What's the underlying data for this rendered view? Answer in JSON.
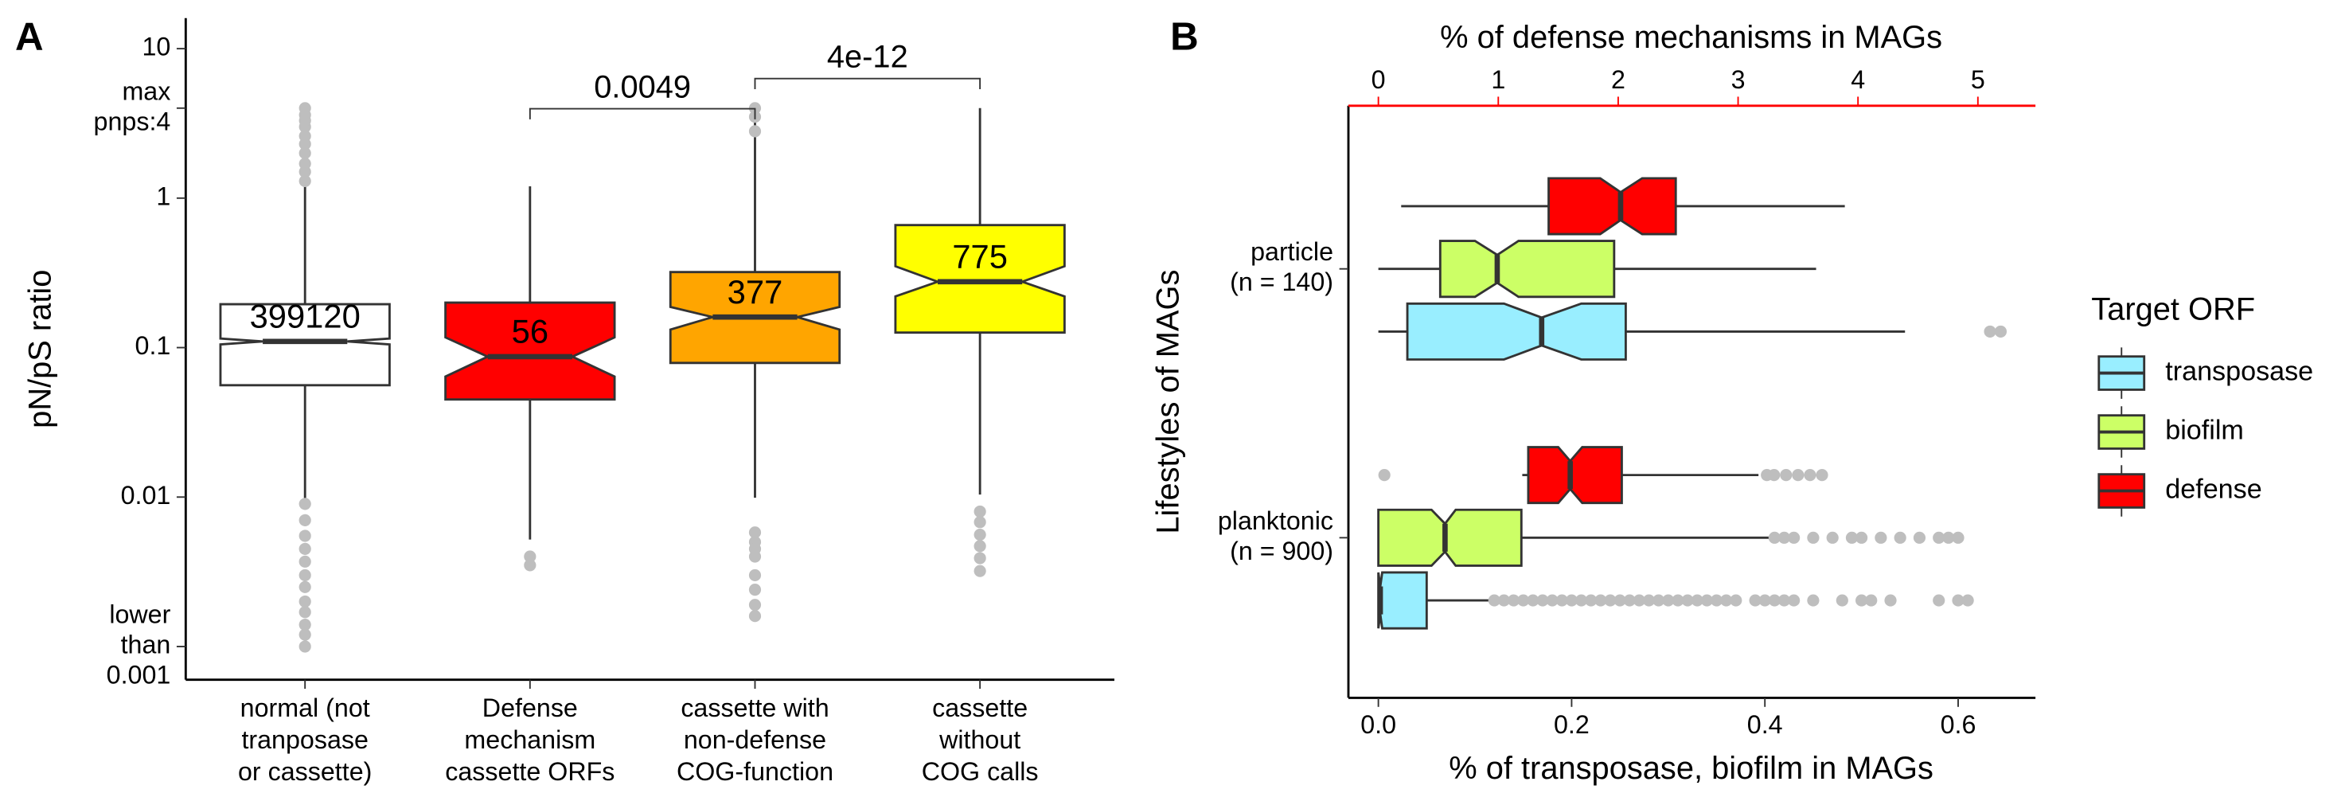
{
  "chart_data": [
    {
      "type": "boxplot",
      "panel_label": "A",
      "ylabel": "pN/pS ratio",
      "log_y": true,
      "ylim": [
        0.0006,
        16
      ],
      "yticks": [
        {
          "value": 0.001,
          "label": [
            "lower",
            "than",
            "0.001"
          ]
        },
        0.01,
        0.1,
        1,
        {
          "value": 4,
          "label": [
            "max",
            "pnps:4"
          ]
        },
        10
      ],
      "categories": [
        [
          "normal (not",
          "tranposase",
          "or cassette)"
        ],
        [
          "Defense",
          "mechanism",
          "cassette ORFs"
        ],
        [
          "cassette with",
          "non-defense",
          "COG-function"
        ],
        [
          "cassette",
          "without",
          "COG calls"
        ]
      ],
      "outlier_color": "#BEBEBE",
      "boxes": [
        {
          "n": 399120,
          "color": "#FFFFFF",
          "q1": 0.056,
          "median": 0.11,
          "q3": 0.195,
          "notch": [
            0.105,
            0.115
          ],
          "whisker_low": 0.009,
          "whisker_high": 1.28,
          "outliers": [
            1.3,
            1.5,
            1.7,
            2,
            2.3,
            2.6,
            3,
            3.3,
            3.6,
            4,
            0.009,
            0.007,
            0.0055,
            0.0045,
            0.0037,
            0.003,
            0.0025,
            0.002,
            0.0017,
            0.0014,
            0.0012,
            0.001
          ]
        },
        {
          "n": 56,
          "color": "#FF0000",
          "q1": 0.045,
          "median": 0.087,
          "q3": 0.2,
          "notch": [
            0.064,
            0.117
          ],
          "whisker_low": 0.0052,
          "whisker_high": 1.2,
          "outliers": [
            0.004,
            0.0035
          ]
        },
        {
          "n": 377,
          "color": "#FFA500",
          "q1": 0.079,
          "median": 0.16,
          "q3": 0.32,
          "notch": [
            0.132,
            0.187
          ],
          "whisker_low": 0.0099,
          "whisker_high": 4,
          "outliers": [
            4,
            3.5,
            2.8,
            0.0058,
            0.005,
            0.0045,
            0.004,
            0.003,
            0.0024,
            0.0019,
            0.0016
          ]
        },
        {
          "n": 775,
          "color": "#FFFF00",
          "q1": 0.126,
          "median": 0.276,
          "q3": 0.66,
          "notch": [
            0.22,
            0.35
          ],
          "whisker_low": 0.0104,
          "whisker_high": 4,
          "outliers": [
            0.008,
            0.0068,
            0.0056,
            0.0047,
            0.0039,
            0.0032
          ]
        }
      ],
      "annotations": [
        "0.0049",
        "4e-12"
      ]
    },
    {
      "type": "hboxplot",
      "panel_label": "B",
      "xlabel": "% of transposase, biofilm in MAGs",
      "x2label": "% of defense mechanisms in MAGs",
      "x2color": "#FF0000",
      "ylabel": "Lifestyles of MAGs",
      "xlim": [
        -0.031,
        0.68
      ],
      "xticks": [
        {
          "value": 0,
          "label": "0.0"
        },
        0.2,
        0.4,
        0.6
      ],
      "x2lim": [
        -0.25,
        5.48
      ],
      "x2ticks": [
        0,
        1,
        2,
        3,
        4,
        5
      ],
      "categories": [
        [
          "particle",
          "(n = 140)"
        ],
        [
          "planktonic",
          "(n = 900)"
        ]
      ],
      "legend_title": "Target ORF",
      "outlier_color": "#BEBEBE",
      "series": [
        {
          "name": "transposase",
          "color": "#99EEFF",
          "boxes": [
            {
              "q1": 0.03,
              "median": 0.169,
              "q3": 0.256,
              "notch": [
                0.13,
                0.21
              ],
              "whisker_low": 0,
              "whisker_high": 0.545,
              "outliers": [
                0.633,
                0.644
              ]
            },
            {
              "q1": 0,
              "median": 0.002,
              "q3": 0.05,
              "notch": [
                0,
                0.004
              ],
              "whisker_low": 0,
              "whisker_high": 0.116,
              "outliers": [
                0.12,
                0.13,
                0.14,
                0.15,
                0.16,
                0.17,
                0.18,
                0.19,
                0.2,
                0.21,
                0.22,
                0.23,
                0.24,
                0.25,
                0.26,
                0.27,
                0.28,
                0.29,
                0.3,
                0.31,
                0.32,
                0.33,
                0.34,
                0.35,
                0.36,
                0.37,
                0.39,
                0.4,
                0.41,
                0.42,
                0.43,
                0.45,
                0.48,
                0.5,
                0.51,
                0.53,
                0.58,
                0.6,
                0.61
              ]
            }
          ]
        },
        {
          "name": "biofilm",
          "color": "#CCFF66",
          "boxes": [
            {
              "q1": 0.064,
              "median": 0.123,
              "q3": 0.244,
              "notch": [
                0.1,
                0.145
              ],
              "whisker_low": 0,
              "whisker_high": 0.453,
              "outliers": []
            },
            {
              "q1": 0,
              "median": 0.069,
              "q3": 0.148,
              "notch": [
                0.055,
                0.08
              ],
              "whisker_low": 0,
              "whisker_high": 0.405,
              "outliers": [
                0.41,
                0.42,
                0.43,
                0.45,
                0.47,
                0.49,
                0.5,
                0.52,
                0.54,
                0.56,
                0.58,
                0.59,
                0.6
              ]
            }
          ]
        },
        {
          "name": "defense",
          "color": "#FF0000",
          "axis": "x2",
          "boxes": [
            {
              "q1": 1.42,
              "median": 2.02,
              "q3": 2.48,
              "notch": [
                1.85,
                2.2
              ],
              "whisker_low": 0.19,
              "whisker_high": 3.89,
              "outliers": []
            },
            {
              "q1": 1.25,
              "median": 1.6,
              "q3": 2.03,
              "notch": [
                1.5,
                1.7
              ],
              "whisker_low": 1.2,
              "whisker_high": 3.17,
              "outliers": [
                0.05,
                3.24,
                3.3,
                3.4,
                3.5,
                3.6,
                3.7
              ]
            }
          ]
        }
      ]
    }
  ]
}
